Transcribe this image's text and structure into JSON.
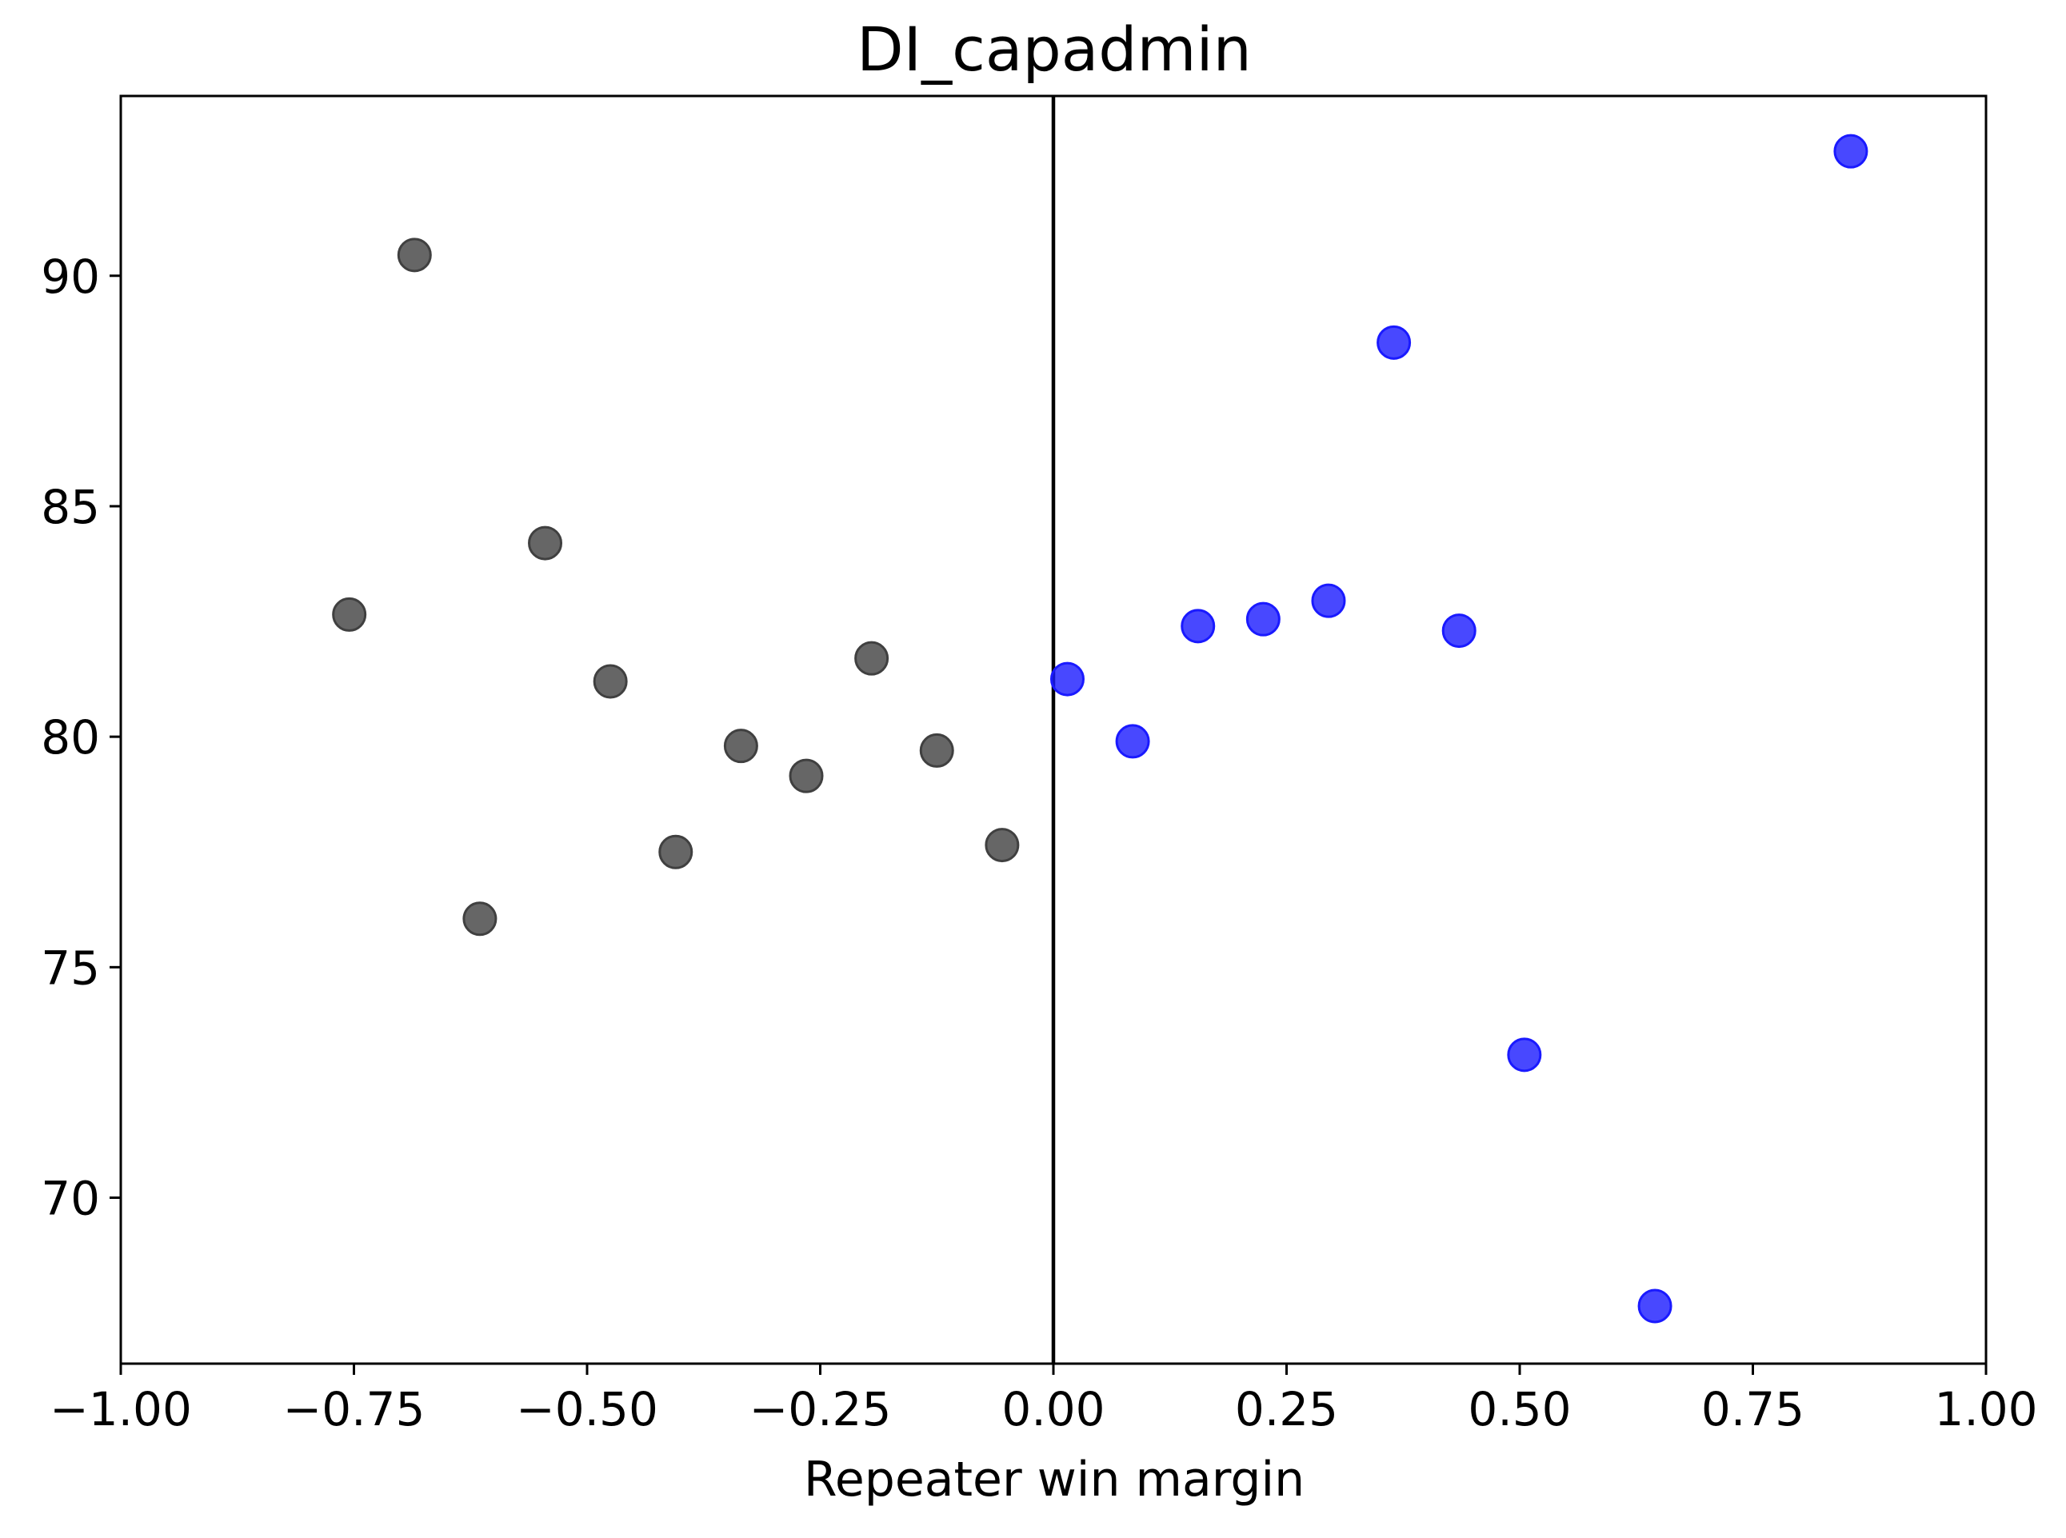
{
  "chart_data": {
    "type": "scatter",
    "title": "DI_capadmin",
    "xlabel": "Repeater win margin",
    "ylabel": "",
    "xlim": [
      -1.0,
      1.0
    ],
    "ylim": [
      66.4,
      93.9
    ],
    "xticks": [
      -1.0,
      -0.75,
      -0.5,
      -0.25,
      0.0,
      0.25,
      0.5,
      0.75,
      1.0
    ],
    "xtick_labels": [
      "−1.00",
      "−0.75",
      "−0.50",
      "−0.25",
      "0.00",
      "0.25",
      "0.50",
      "0.75",
      "1.00"
    ],
    "yticks": [
      70,
      75,
      80,
      85,
      90
    ],
    "ytick_labels": [
      "70",
      "75",
      "80",
      "85",
      "90"
    ],
    "vline_x": 0.0,
    "grid": false,
    "series": [
      {
        "color": "#404040",
        "points": [
          {
            "x": -0.755,
            "y": 82.65
          },
          {
            "x": -0.685,
            "y": 90.45
          },
          {
            "x": -0.615,
            "y": 76.05
          },
          {
            "x": -0.545,
            "y": 84.2
          },
          {
            "x": -0.475,
            "y": 81.2
          },
          {
            "x": -0.405,
            "y": 77.5
          },
          {
            "x": -0.335,
            "y": 79.8
          },
          {
            "x": -0.265,
            "y": 79.15
          },
          {
            "x": -0.195,
            "y": 81.7
          },
          {
            "x": -0.125,
            "y": 79.7
          },
          {
            "x": -0.055,
            "y": 77.65
          }
        ]
      },
      {
        "color": "#1a1aff",
        "points": [
          {
            "x": 0.015,
            "y": 81.25
          },
          {
            "x": 0.085,
            "y": 79.9
          },
          {
            "x": 0.155,
            "y": 82.4
          },
          {
            "x": 0.225,
            "y": 82.55
          },
          {
            "x": 0.295,
            "y": 82.95
          },
          {
            "x": 0.365,
            "y": 88.55
          },
          {
            "x": 0.435,
            "y": 82.3
          },
          {
            "x": 0.505,
            "y": 73.1
          },
          {
            "x": 0.645,
            "y": 67.65
          },
          {
            "x": 0.855,
            "y": 92.7
          }
        ]
      }
    ]
  }
}
